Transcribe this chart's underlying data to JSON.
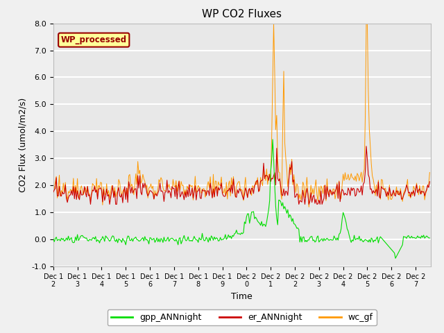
{
  "title": "WP CO2 Fluxes",
  "xlabel": "Time",
  "ylabel_display": "CO2 Flux (umol/m2/s)",
  "xlim": [
    0,
    375
  ],
  "ylim": [
    -1.0,
    8.0
  ],
  "yticks": [
    -1.0,
    0.0,
    1.0,
    2.0,
    3.0,
    4.0,
    5.0,
    6.0,
    7.0,
    8.0
  ],
  "xtick_labels": [
    "Dec 12",
    "Dec 13",
    "Dec 14",
    "Dec 15",
    "Dec 16",
    "Dec 17",
    "Dec 18",
    "Dec 19",
    "Dec 20",
    "Dec 21",
    "Dec 22",
    "Dec 23",
    "Dec 24",
    "Dec 25",
    "Dec 26",
    "Dec 27"
  ],
  "xtick_positions": [
    0,
    24,
    48,
    72,
    96,
    120,
    144,
    168,
    192,
    216,
    240,
    264,
    288,
    312,
    336,
    360
  ],
  "legend_labels": [
    "gpp_ANNnight",
    "er_ANNnight",
    "wc_gf"
  ],
  "legend_colors": [
    "#00dd00",
    "#cc0000",
    "#ff9900"
  ],
  "watermark_text": "WP_processed",
  "watermark_color": "#990000",
  "watermark_bg": "#ffff99",
  "line_colors": {
    "gpp": "#00dd00",
    "er": "#cc0000",
    "wc": "#ff9900"
  },
  "background_color": "#e8e8e8",
  "grid_color": "#ffffff",
  "n_points": 375,
  "figsize": [
    6.4,
    4.8
  ],
  "dpi": 100
}
